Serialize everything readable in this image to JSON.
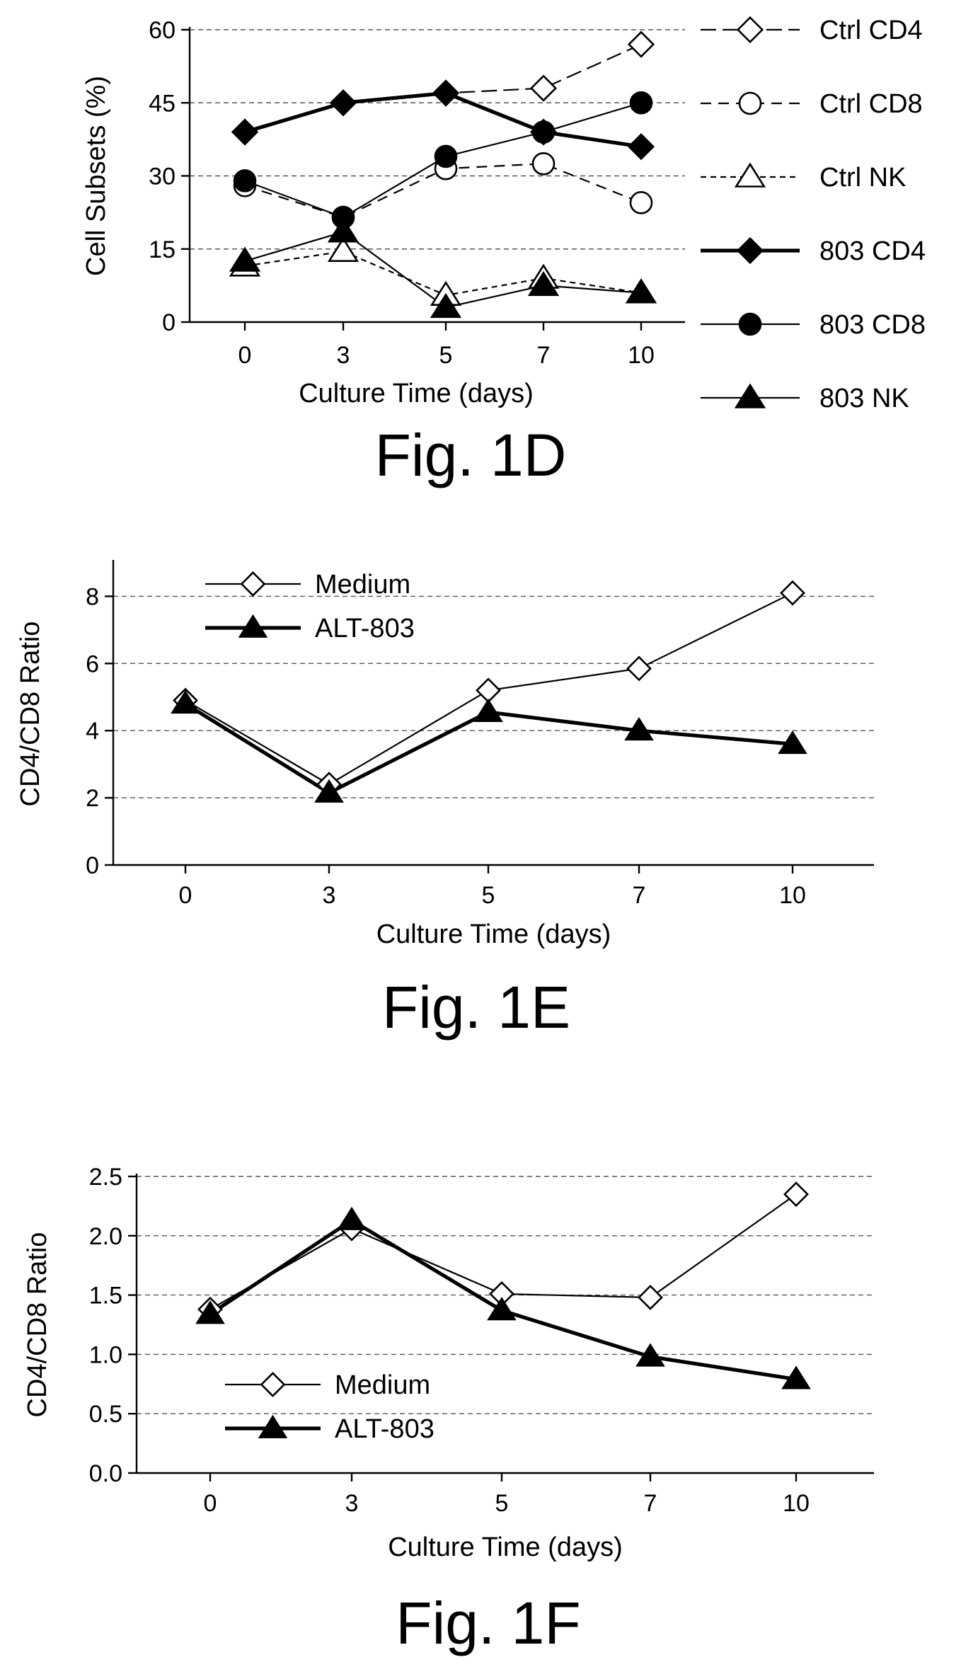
{
  "colors": {
    "line": "#000000",
    "grid": "#555555",
    "background": "#ffffff"
  },
  "chart_data": [
    {
      "type": "line",
      "caption": "Fig. 1D",
      "xlabel": "Culture Time (days)",
      "ylabel": "Cell Subsets (%)",
      "x": [
        0,
        3,
        5,
        7,
        10
      ],
      "ylim": [
        0,
        60
      ],
      "yticks": [
        0,
        15,
        30,
        45,
        60
      ],
      "ytick_labels": [
        "0",
        "15",
        "30",
        "45",
        "60"
      ],
      "grid": true,
      "legend_position": "right",
      "series": [
        {
          "name": "Ctrl CD4",
          "values": [
            39,
            45,
            47,
            48,
            57
          ],
          "marker": "diamond",
          "filled": false,
          "dash": "long-dash",
          "weight": "thin"
        },
        {
          "name": "Ctrl CD8",
          "values": [
            28,
            21.5,
            31.5,
            32.5,
            24.5
          ],
          "marker": "circle",
          "filled": false,
          "dash": "dash",
          "weight": "thin"
        },
        {
          "name": "Ctrl NK",
          "values": [
            11.5,
            14.5,
            5.5,
            9,
            6
          ],
          "marker": "triangle",
          "filled": false,
          "dash": "short-dash",
          "weight": "thin"
        },
        {
          "name": "803 CD4",
          "values": [
            39,
            45,
            47,
            39,
            36
          ],
          "marker": "diamond",
          "filled": true,
          "dash": "solid",
          "weight": "thick"
        },
        {
          "name": "803 CD8",
          "values": [
            29,
            21.5,
            34,
            39,
            45
          ],
          "marker": "circle",
          "filled": true,
          "dash": "solid",
          "weight": "thin"
        },
        {
          "name": "803 NK",
          "values": [
            12.5,
            18.5,
            3,
            7.5,
            6
          ],
          "marker": "triangle",
          "filled": true,
          "dash": "solid",
          "weight": "thin"
        }
      ]
    },
    {
      "type": "line",
      "caption": "Fig. 1E",
      "xlabel": "Culture Time (days)",
      "ylabel": "CD4/CD8 Ratio",
      "x": [
        0,
        3,
        5,
        7,
        10
      ],
      "ylim": [
        0,
        9
      ],
      "yticks": [
        0,
        2,
        4,
        6,
        8
      ],
      "ytick_labels": [
        "0",
        "2",
        "4",
        "6",
        "8"
      ],
      "grid": true,
      "legend_position": "top-left",
      "series": [
        {
          "name": "Medium",
          "values": [
            4.9,
            2.4,
            5.2,
            5.85,
            8.1
          ],
          "marker": "diamond",
          "filled": false,
          "dash": "solid",
          "weight": "thin"
        },
        {
          "name": "ALT-803",
          "values": [
            4.8,
            2.15,
            4.55,
            4.0,
            3.6
          ],
          "marker": "triangle",
          "filled": true,
          "dash": "solid",
          "weight": "thick"
        }
      ]
    },
    {
      "type": "line",
      "caption": "Fig. 1F",
      "xlabel": "Culture Time (days)",
      "ylabel": "CD4/CD8 Ratio",
      "x": [
        0,
        3,
        5,
        7,
        10
      ],
      "ylim": [
        0,
        2.5
      ],
      "yticks": [
        0,
        0.5,
        1.0,
        1.5,
        2.0,
        2.5
      ],
      "ytick_labels": [
        "0.0",
        "0.5",
        "1.0",
        "1.5",
        "2.0",
        "2.5"
      ],
      "grid": true,
      "legend_position": "bottom-left",
      "series": [
        {
          "name": "Medium",
          "values": [
            1.38,
            2.06,
            1.51,
            1.48,
            2.35
          ],
          "marker": "diamond",
          "filled": false,
          "dash": "solid",
          "weight": "thin"
        },
        {
          "name": "ALT-803",
          "values": [
            1.34,
            2.13,
            1.37,
            0.98,
            0.79
          ],
          "marker": "triangle",
          "filled": true,
          "dash": "solid",
          "weight": "thick"
        }
      ]
    }
  ]
}
